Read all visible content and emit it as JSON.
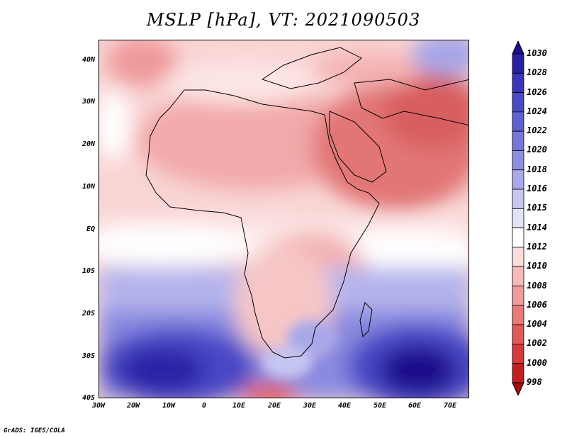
{
  "title": "MSLP [hPa], VT: 2021090503",
  "footer": "GrADS: IGES/COLA",
  "lat_labels": [
    "40N",
    "30N",
    "20N",
    "10N",
    "EQ",
    "10S",
    "20S",
    "30S",
    "40S"
  ],
  "lon_labels": [
    "30W",
    "20W",
    "10W",
    "0",
    "10E",
    "20E",
    "30E",
    "40E",
    "50E",
    "60E",
    "70E"
  ],
  "colorbar": {
    "levels": [
      "1030",
      "1028",
      "1026",
      "1024",
      "1022",
      "1020",
      "1018",
      "1016",
      "1015",
      "1014",
      "1012",
      "1010",
      "1008",
      "1006",
      "1004",
      "1002",
      "1000",
      "998"
    ],
    "colors": [
      "#1c0f8c",
      "#2a1fa3",
      "#3b34b8",
      "#4c49c6",
      "#6060d0",
      "#7676d9",
      "#8e8ee1",
      "#a9a9ea",
      "#c6c6f2",
      "#e2e2f8",
      "#ffffff",
      "#fbdcdc",
      "#f6bcbc",
      "#f09c9c",
      "#e97a7a",
      "#e05a5a",
      "#d43a3a",
      "#c21f1f",
      "#a90e0e"
    ]
  }
}
